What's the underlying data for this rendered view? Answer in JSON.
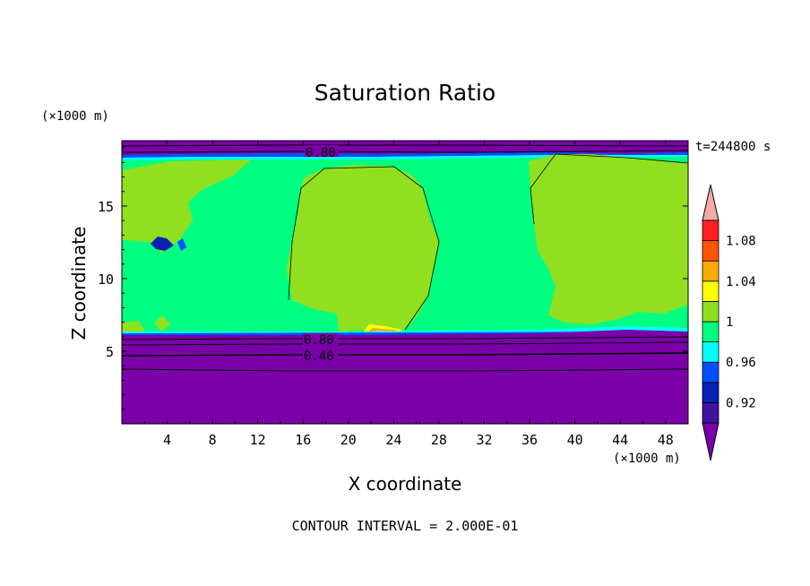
{
  "chart_data": {
    "type": "heatmap",
    "title": "Saturation Ratio",
    "xlabel": "X coordinate",
    "ylabel": "Z coordinate",
    "x_unit": "(×1000 m)",
    "y_unit": "(×1000 m)",
    "time_label": "t=244800 s",
    "footer": "CONTOUR INTERVAL = 2.000E-01",
    "xlim": [
      0,
      50
    ],
    "ylim": [
      0,
      19.5
    ],
    "x_ticks": [
      "4",
      "8",
      "12",
      "16",
      "20",
      "24",
      "28",
      "32",
      "36",
      "40",
      "44",
      "48"
    ],
    "y_ticks": [
      "5",
      "10",
      "15"
    ],
    "contour_labels": [
      {
        "text": "0.80",
        "x": 18,
        "z": 18.8
      },
      {
        "text": "0.80",
        "x": 17.8,
        "z": 5.9
      },
      {
        "text": "0.40",
        "x": 17.8,
        "z": 4.8
      }
    ],
    "colorbar": {
      "labels": [
        "0.92",
        "0.96",
        "1",
        "1.04",
        "1.08"
      ],
      "levels": [
        0.9,
        0.92,
        0.94,
        0.96,
        0.98,
        1.0,
        1.02,
        1.04,
        1.06,
        1.08,
        1.1
      ],
      "colors": [
        "#7a00a8",
        "#3c14a0",
        "#0a1fb4",
        "#0050ff",
        "#00ffff",
        "#00ff80",
        "#90e020",
        "#ffff00",
        "#ffaa00",
        "#ff5500",
        "#ff2020",
        "#f4a8a8"
      ]
    }
  }
}
